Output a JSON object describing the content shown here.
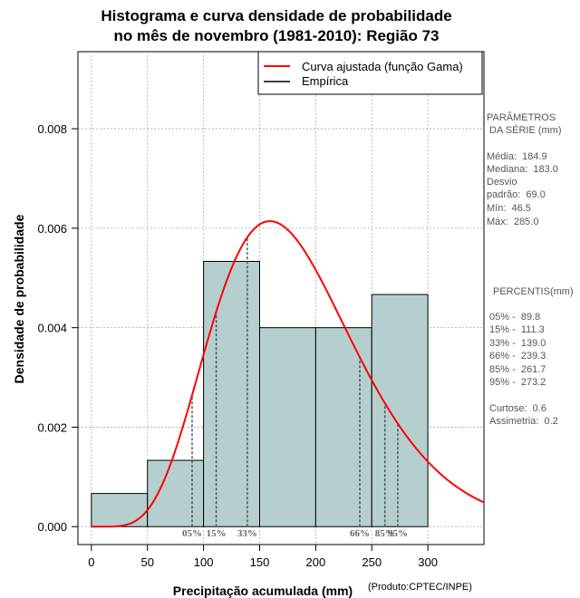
{
  "title": {
    "line1": "Histograma e curva densidade de probabilidade",
    "line2": "no mês de novembro (1981-2010): Região 73"
  },
  "credit": "(Produto:CPTEC/INPE)",
  "colors": {
    "bar_fill": "#b5cfcf",
    "curve": "#ff0000",
    "grid": "#aaaaaa",
    "percentile_lines": "#555555",
    "percentile_labels": "#666666"
  },
  "chart_data": {
    "type": "bar",
    "title": "Histograma e curva densidade de probabilidade no mês de novembro (1981-2010): Região 73",
    "xlabel": "Precipitação acumulada (mm)",
    "ylabel": "Densidade de probabilidade",
    "xlim": [
      -12,
      350
    ],
    "ylim": [
      -0.00036,
      0.00955
    ],
    "x_ticks": [
      0,
      50,
      100,
      150,
      200,
      250,
      300
    ],
    "y_ticks": [
      0.0,
      0.002,
      0.004,
      0.006,
      0.008
    ],
    "y_tick_labels": [
      "0.000",
      "0.002",
      "0.004",
      "0.006",
      "0.008"
    ],
    "grid": true,
    "histogram": {
      "name": "Empírica",
      "bins": [
        {
          "from": 0,
          "to": 50,
          "density": 0.000667
        },
        {
          "from": 50,
          "to": 100,
          "density": 0.001333
        },
        {
          "from": 100,
          "to": 150,
          "density": 0.005333
        },
        {
          "from": 150,
          "to": 200,
          "density": 0.004
        },
        {
          "from": 200,
          "to": 250,
          "density": 0.004
        },
        {
          "from": 250,
          "to": 300,
          "density": 0.004667
        }
      ]
    },
    "curve": {
      "name": "Curva ajustada (função Gama)",
      "distribution": "gamma",
      "shape": 7.17,
      "scale": 25.8
    },
    "percentiles": [
      {
        "label": "05%",
        "x": 89.8
      },
      {
        "label": "15%",
        "x": 111.3
      },
      {
        "label": "33%",
        "x": 139.0
      },
      {
        "label": "66%",
        "x": 239.3
      },
      {
        "label": "85%",
        "x": 261.7
      },
      {
        "label": "95%",
        "x": 273.2
      }
    ],
    "legend": {
      "position": "top-right",
      "entries": [
        "Curva ajustada (função Gama)",
        "Empírica"
      ]
    }
  },
  "side_panel": {
    "params_title_1": "PARÂMETROS",
    "params_title_2": " DA SÉRIE (mm)",
    "media": "Média:  184.9",
    "mediana": "Mediana:  183.0",
    "desvio_1": "Desvio",
    "desvio_2": "padrão:  69.0",
    "min": "Mín:  46.5",
    "max": "Máx:  285.0",
    "percentis_title": "PERCENTIS(mm)",
    "p05": "05% -  89.8",
    "p15": "15% -  111.3",
    "p33": "33% -  139.0",
    "p66": "66% -  239.3",
    "p85": "85% -  261.7",
    "p95": "95% -  273.2",
    "curtose": "Curtose:  0.6",
    "assimetria": "Assimetria:  0.2"
  }
}
